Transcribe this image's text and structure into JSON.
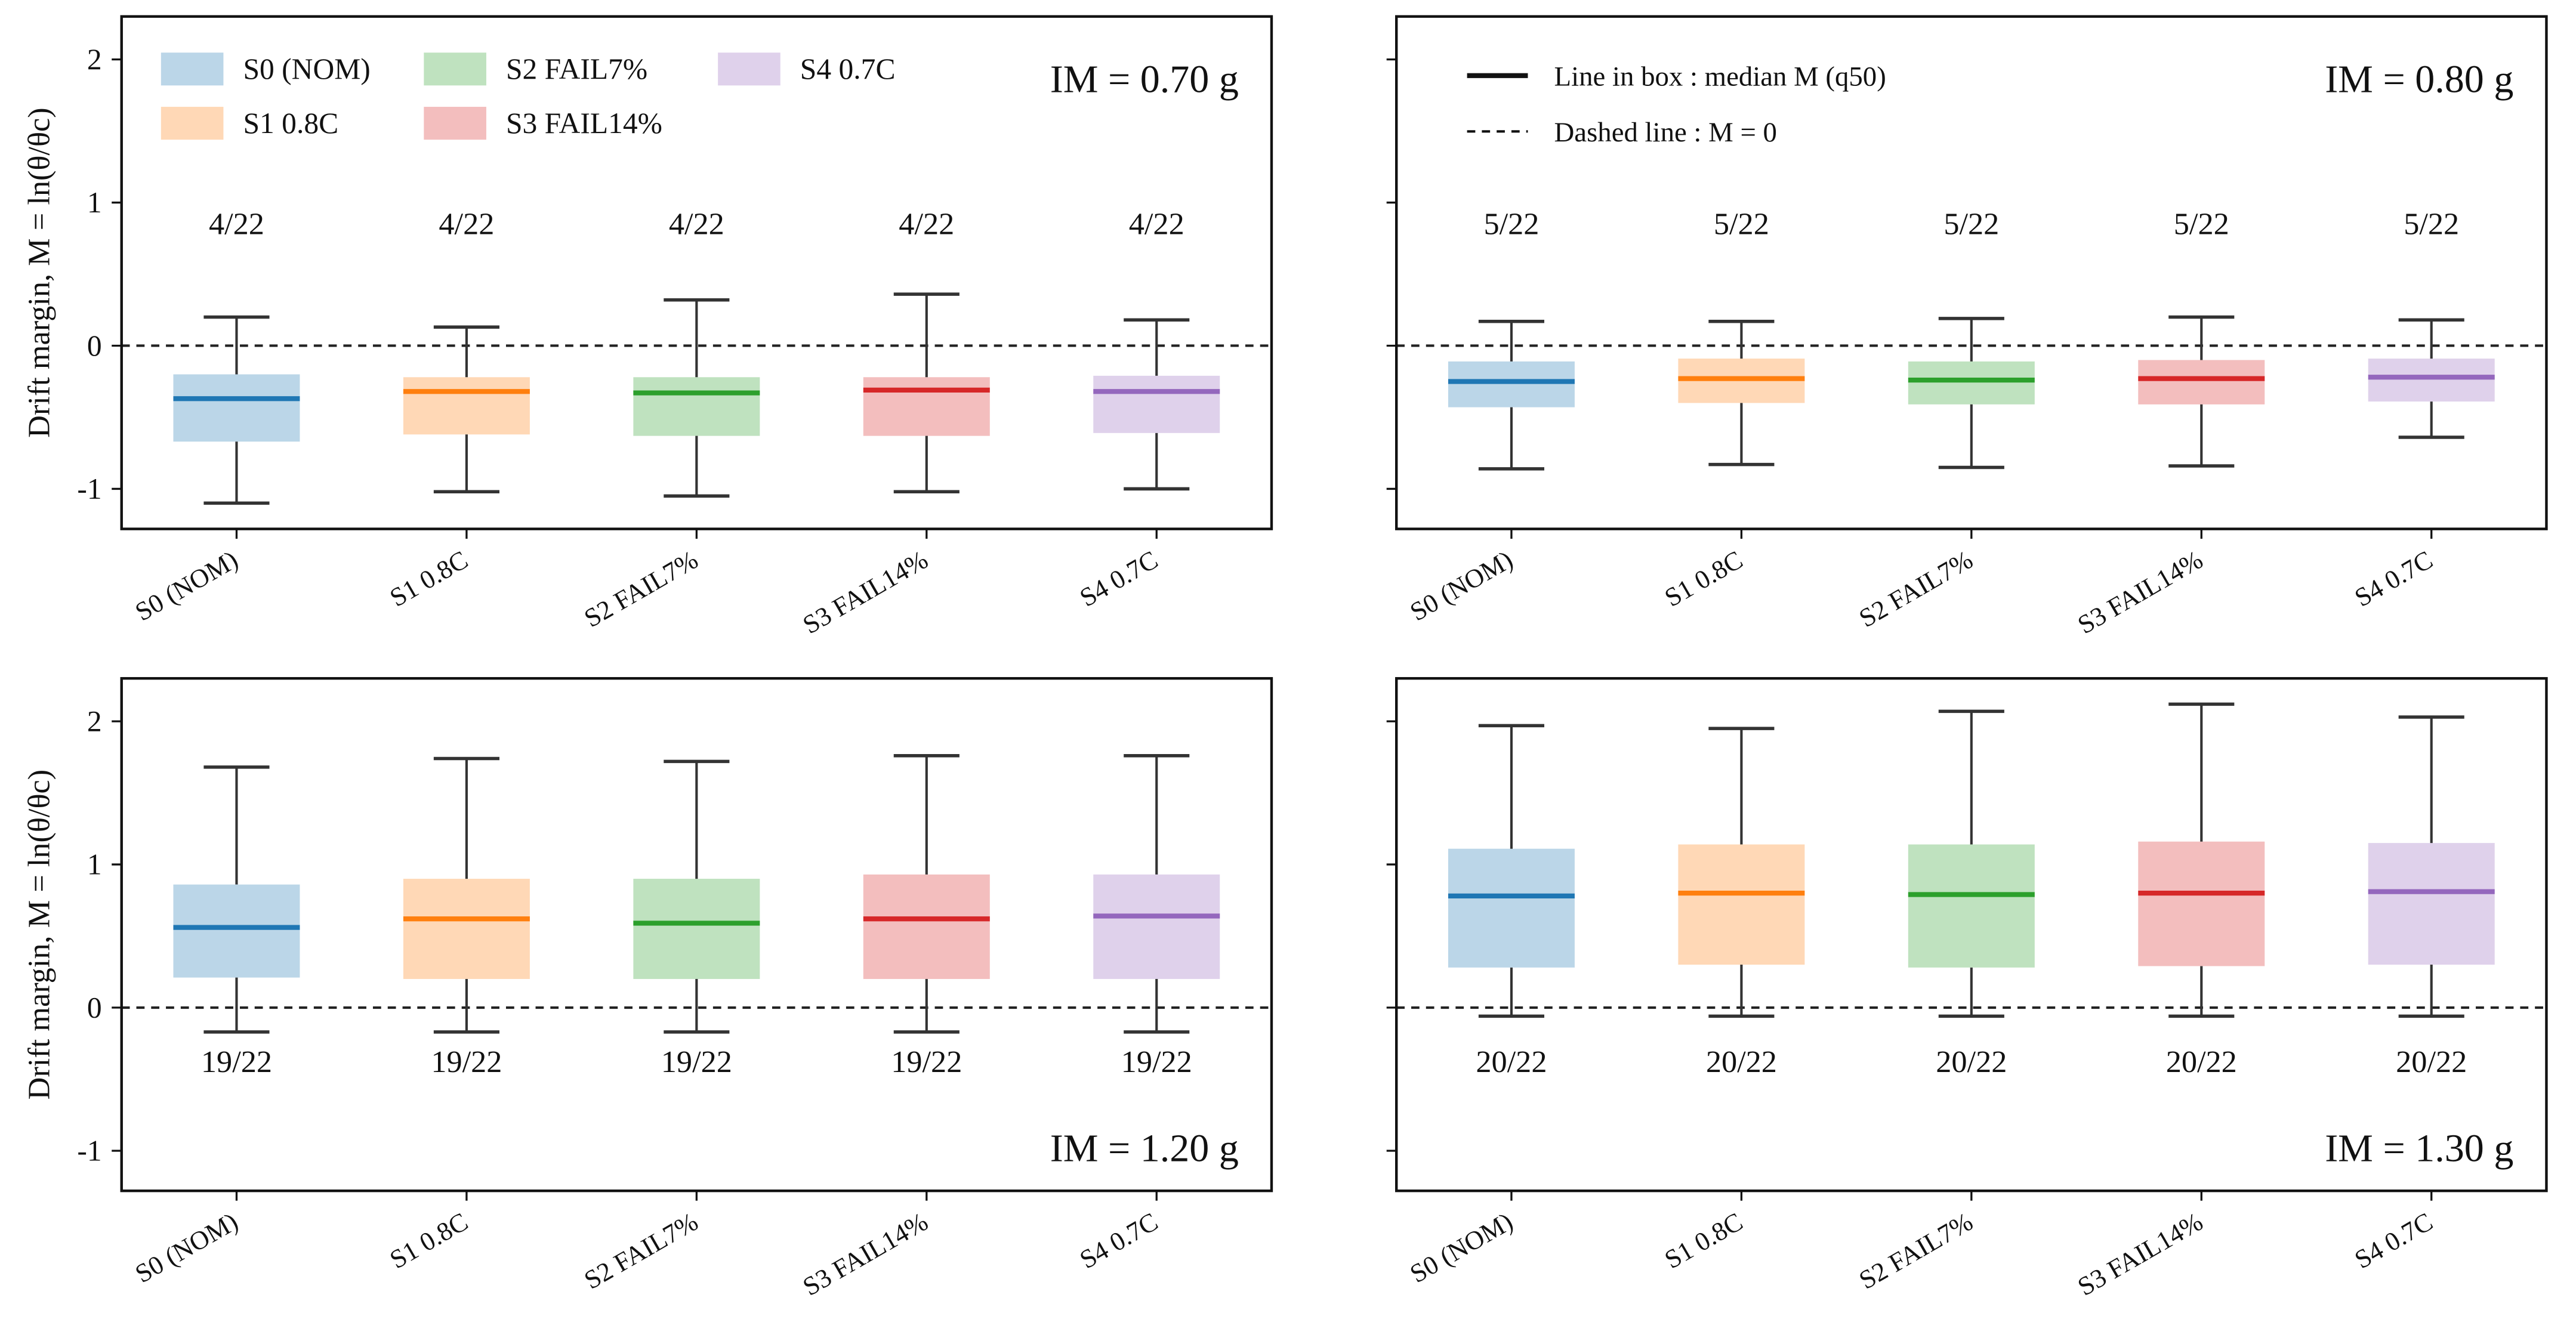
{
  "chart_data": [
    {
      "type": "box",
      "im_label": "IM = 0.70 g",
      "ylabel": "Drift margin, M = ln(θ/θc)",
      "ylim": [
        -1.28,
        2.3
      ],
      "yticks": [
        -1,
        0,
        1,
        2
      ],
      "categories": [
        "S0 (NOM)",
        "S1 0.8C",
        "S2 FAIL7%",
        "S3 FAIL14%",
        "S4 0.7C"
      ],
      "counts": [
        "4/22",
        "4/22",
        "4/22",
        "4/22",
        "4/22"
      ],
      "count_position": "above",
      "boxes": [
        {
          "whislo": -1.1,
          "q1": -0.67,
          "med": -0.37,
          "q3": -0.2,
          "whishi": 0.2
        },
        {
          "whislo": -1.02,
          "q1": -0.62,
          "med": -0.32,
          "q3": -0.22,
          "whishi": 0.13
        },
        {
          "whislo": -1.05,
          "q1": -0.63,
          "med": -0.33,
          "q3": -0.22,
          "whishi": 0.32
        },
        {
          "whislo": -1.02,
          "q1": -0.63,
          "med": -0.31,
          "q3": -0.22,
          "whishi": 0.36
        },
        {
          "whislo": -1.0,
          "q1": -0.61,
          "med": -0.32,
          "q3": -0.21,
          "whishi": 0.18
        }
      ],
      "legend": "top-left"
    },
    {
      "type": "box",
      "im_label": "IM = 0.80 g",
      "ylim": [
        -1.28,
        2.3
      ],
      "yticks": [
        -1,
        0,
        1,
        2
      ],
      "categories": [
        "S0 (NOM)",
        "S1 0.8C",
        "S2 FAIL7%",
        "S3 FAIL14%",
        "S4 0.7C"
      ],
      "counts": [
        "5/22",
        "5/22",
        "5/22",
        "5/22",
        "5/22"
      ],
      "count_position": "above",
      "boxes": [
        {
          "whislo": -0.86,
          "q1": -0.43,
          "med": -0.25,
          "q3": -0.11,
          "whishi": 0.17
        },
        {
          "whislo": -0.83,
          "q1": -0.4,
          "med": -0.23,
          "q3": -0.09,
          "whishi": 0.17
        },
        {
          "whislo": -0.85,
          "q1": -0.41,
          "med": -0.24,
          "q3": -0.11,
          "whishi": 0.19
        },
        {
          "whislo": -0.84,
          "q1": -0.41,
          "med": -0.23,
          "q3": -0.1,
          "whishi": 0.2
        },
        {
          "whislo": -0.64,
          "q1": -0.39,
          "med": -0.22,
          "q3": -0.09,
          "whishi": 0.18
        }
      ],
      "line_legend": [
        "Line in box : median M (q50)",
        "Dashed line : M = 0"
      ]
    },
    {
      "type": "box",
      "im_label": "IM = 1.20 g",
      "ylabel": "Drift margin, M = ln(θ/θc)",
      "ylim": [
        -1.28,
        2.3
      ],
      "yticks": [
        -1,
        0,
        1,
        2
      ],
      "categories": [
        "S0 (NOM)",
        "S1 0.8C",
        "S2 FAIL7%",
        "S3 FAIL14%",
        "S4 0.7C"
      ],
      "counts": [
        "19/22",
        "19/22",
        "19/22",
        "19/22",
        "19/22"
      ],
      "count_position": "below",
      "boxes": [
        {
          "whislo": -0.17,
          "q1": 0.21,
          "med": 0.56,
          "q3": 0.86,
          "whishi": 1.68
        },
        {
          "whislo": -0.17,
          "q1": 0.2,
          "med": 0.62,
          "q3": 0.9,
          "whishi": 1.74
        },
        {
          "whislo": -0.17,
          "q1": 0.2,
          "med": 0.59,
          "q3": 0.9,
          "whishi": 1.72
        },
        {
          "whislo": -0.17,
          "q1": 0.2,
          "med": 0.62,
          "q3": 0.93,
          "whishi": 1.76
        },
        {
          "whislo": -0.17,
          "q1": 0.2,
          "med": 0.64,
          "q3": 0.93,
          "whishi": 1.76
        }
      ]
    },
    {
      "type": "box",
      "im_label": "IM = 1.30 g",
      "ylim": [
        -1.28,
        2.3
      ],
      "yticks": [
        -1,
        0,
        1,
        2
      ],
      "categories": [
        "S0 (NOM)",
        "S1 0.8C",
        "S2 FAIL7%",
        "S3 FAIL14%",
        "S4 0.7C"
      ],
      "counts": [
        "20/22",
        "20/22",
        "20/22",
        "20/22",
        "20/22"
      ],
      "count_position": "below",
      "boxes": [
        {
          "whislo": -0.06,
          "q1": 0.28,
          "med": 0.78,
          "q3": 1.11,
          "whishi": 1.97
        },
        {
          "whislo": -0.06,
          "q1": 0.3,
          "med": 0.8,
          "q3": 1.14,
          "whishi": 1.95
        },
        {
          "whislo": -0.06,
          "q1": 0.28,
          "med": 0.79,
          "q3": 1.14,
          "whishi": 2.07
        },
        {
          "whislo": -0.06,
          "q1": 0.29,
          "med": 0.8,
          "q3": 1.16,
          "whishi": 2.12
        },
        {
          "whislo": -0.06,
          "q1": 0.3,
          "med": 0.81,
          "q3": 1.15,
          "whishi": 2.03
        }
      ]
    }
  ],
  "colors": [
    "#1f77b4",
    "#ff7f0e",
    "#2ca02c",
    "#d62728",
    "#9467bd"
  ],
  "legend_labels": [
    "S0 (NOM)",
    "S1 0.8C",
    "S2 FAIL7%",
    "S3 FAIL14%",
    "S4 0.7C"
  ],
  "ylabel_text": "Drift margin, M = ln(θ/θc)"
}
